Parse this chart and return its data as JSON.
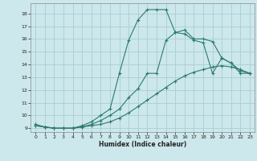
{
  "xlabel": "Humidex (Indice chaleur)",
  "xlim": [
    -0.5,
    23.5
  ],
  "ylim": [
    8.7,
    18.8
  ],
  "yticks": [
    9,
    10,
    11,
    12,
    13,
    14,
    15,
    16,
    17,
    18
  ],
  "xticks": [
    0,
    1,
    2,
    3,
    4,
    5,
    6,
    7,
    8,
    9,
    10,
    11,
    12,
    13,
    14,
    15,
    16,
    17,
    18,
    19,
    20,
    21,
    22,
    23
  ],
  "bg_color": "#cce8ec",
  "grid_color": "#aacdd4",
  "line_color": "#2d7a6e",
  "curve1_x": [
    0,
    1,
    2,
    3,
    4,
    5,
    6,
    7,
    8,
    9,
    10,
    11,
    12,
    13,
    14,
    15,
    16,
    17,
    18,
    19,
    20,
    21,
    22,
    23
  ],
  "curve1_y": [
    9.2,
    9.1,
    9.0,
    9.0,
    9.0,
    9.1,
    9.2,
    9.3,
    9.5,
    9.8,
    10.2,
    10.7,
    11.2,
    11.7,
    12.2,
    12.7,
    13.1,
    13.4,
    13.6,
    13.8,
    13.9,
    13.8,
    13.6,
    13.3
  ],
  "curve2_x": [
    0,
    1,
    2,
    3,
    4,
    5,
    6,
    7,
    8,
    9,
    10,
    11,
    12,
    13,
    14,
    15,
    16,
    17,
    18,
    19,
    20,
    21,
    22,
    23
  ],
  "curve2_y": [
    9.2,
    9.1,
    9.0,
    9.0,
    9.0,
    9.1,
    9.3,
    9.6,
    10.0,
    10.5,
    11.4,
    12.1,
    13.3,
    13.3,
    15.9,
    16.5,
    16.4,
    15.9,
    15.7,
    13.3,
    14.5,
    14.1,
    13.3,
    13.3
  ],
  "curve3_x": [
    0,
    1,
    2,
    3,
    4,
    5,
    6,
    7,
    8,
    9,
    10,
    11,
    12,
    13,
    14,
    15,
    16,
    17,
    18,
    19,
    20,
    21,
    22,
    23
  ],
  "curve3_y": [
    9.3,
    9.1,
    9.0,
    9.0,
    9.0,
    9.2,
    9.5,
    10.0,
    10.5,
    13.3,
    15.9,
    17.5,
    18.3,
    18.3,
    18.3,
    16.5,
    16.7,
    16.0,
    16.0,
    15.8,
    14.5,
    14.1,
    13.5,
    13.3
  ]
}
